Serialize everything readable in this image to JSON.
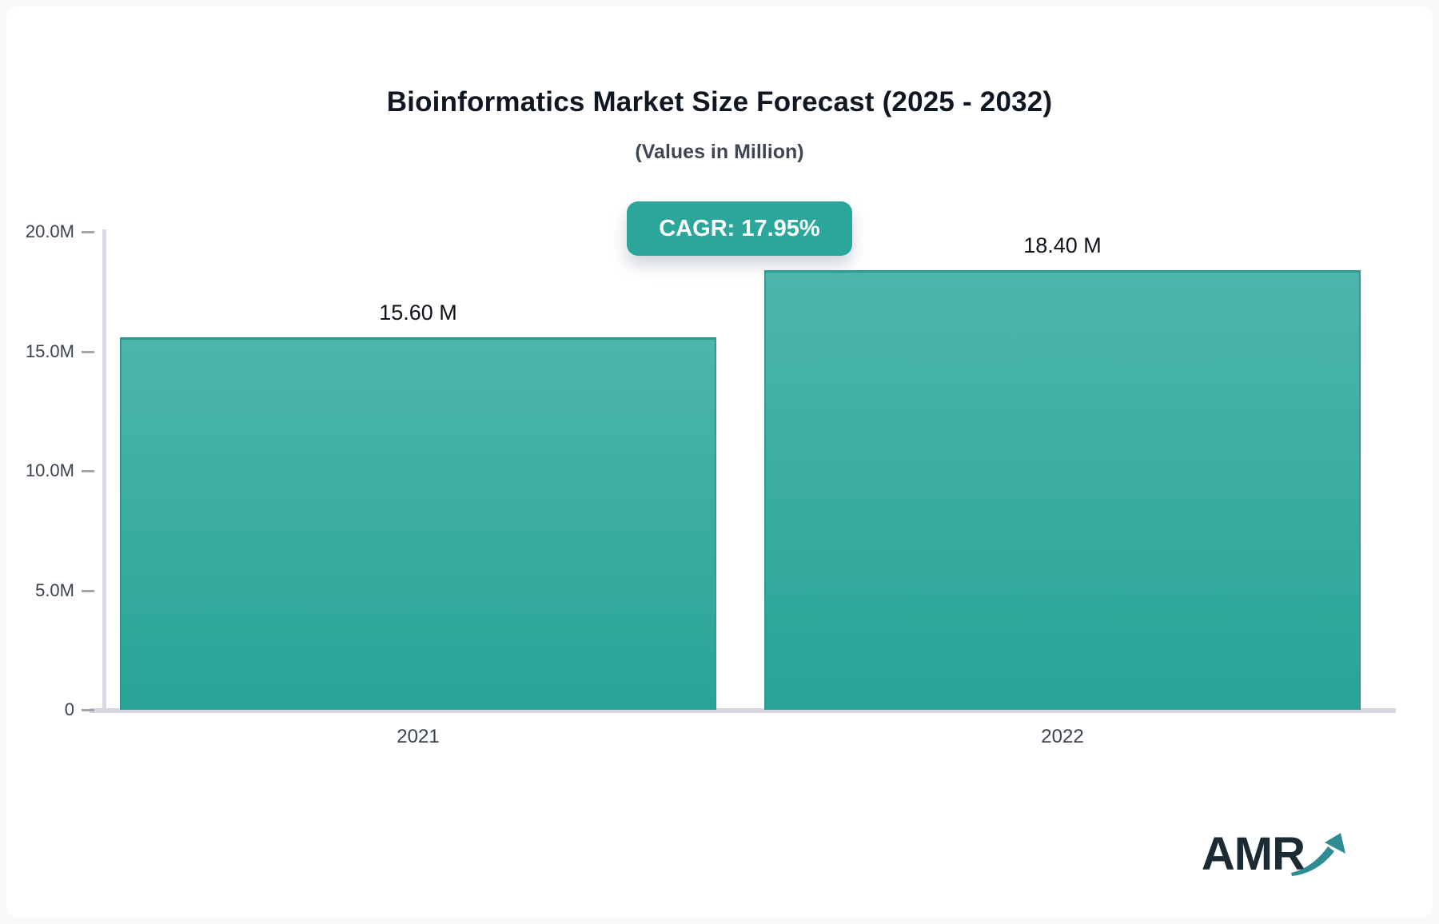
{
  "header": {
    "title": "Bioinformatics Market Size Forecast (2025 - 2032)",
    "subtitle": "(Values in Million)"
  },
  "badge": {
    "label": "CAGR: 17.95%",
    "background": "#2aa79a",
    "text_color": "#ffffff"
  },
  "chart_data": {
    "type": "bar",
    "title": "Bioinformatics Market Size Forecast (2025 - 2032)",
    "subtitle": "(Values in Million)",
    "unit": "Million",
    "categories": [
      "2021",
      "2022"
    ],
    "values": [
      15.6,
      18.4
    ],
    "value_labels": [
      "15.60 M",
      "18.40 M"
    ],
    "cagr_label": "CAGR: 17.95%",
    "cagr_percent": 17.95,
    "ylim": [
      0,
      20
    ],
    "yticks": [
      {
        "label": "20.0M",
        "value": 20
      },
      {
        "label": "15.0M",
        "value": 15
      },
      {
        "label": "10.0M",
        "value": 10
      },
      {
        "label": "5.0M",
        "value": 5
      },
      {
        "label": "0",
        "value": 0
      }
    ],
    "grid": false,
    "legend": false,
    "bar_color_top": "#4db6aa",
    "bar_color_bottom": "#27a496",
    "bar_border_color": "#2b9c8f",
    "axis_color": "#d5d8df",
    "label_color": "#39434e"
  },
  "logo": {
    "text": "AMR",
    "text_color": "#1b2a33",
    "arrow_color": "#2e8d92"
  }
}
